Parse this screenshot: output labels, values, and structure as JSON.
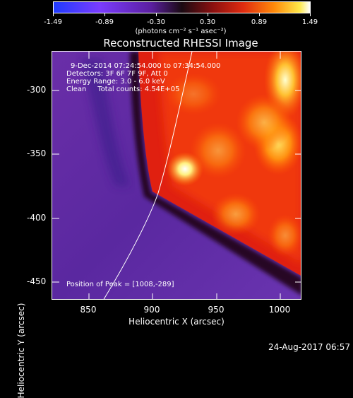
{
  "colorbar": {
    "ticks": [
      "-1.49",
      "-0.89",
      "-0.30",
      "0.30",
      "0.89",
      "1.49"
    ],
    "units": "(photons cm⁻² s⁻¹ asec⁻²)"
  },
  "title": "Reconstructed RHESSI Image",
  "info": {
    "time_range": "9-Dec-2014 07:24:54.000 to 07:34:54.000",
    "detectors": "Detectors: 3F 6F 7F 9F, Att 0",
    "energy": "Energy Range: 3.0 - 6.0 keV",
    "clean": "Clean     Total counts: 4.54E+05",
    "peak": "Position of Peak = [1008,-289]"
  },
  "axes": {
    "xlabel": "Heliocentric X (arcsec)",
    "ylabel": "Heliocentric Y (arcsec)",
    "xticks": [
      "850",
      "900",
      "950",
      "1000"
    ],
    "yticks": [
      "-300",
      "-350",
      "-400",
      "-450"
    ]
  },
  "timestamp": "24-Aug-2017 06:57",
  "colors": {
    "background": "#000000",
    "foreground": "#ffffff"
  }
}
